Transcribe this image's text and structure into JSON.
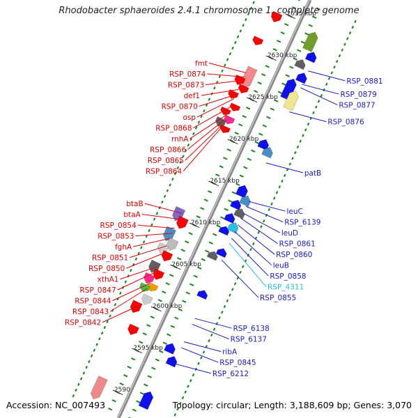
{
  "title": "Rhodobacter sphaeroides 2.4.1 chromosome 1, complete genome",
  "footer": {
    "accession": "Accession: NC_007493",
    "summary": "Topology: circular; Length: 3,188,609 bp; Genes: 3,070"
  },
  "colors": {
    "left_label": "#e00000",
    "right_label": "#1a1acc",
    "highlight_label": "#1fc1e0",
    "backbone": "#8a8a8a",
    "tick": "#1a8a1a"
  },
  "scale_ticks": [
    {
      "label": "2635 kbp",
      "kbp": 2635
    },
    {
      "label": "2630 kbp",
      "kbp": 2630
    },
    {
      "label": "2625 kbp",
      "kbp": 2625
    },
    {
      "label": "2620 kbp",
      "kbp": 2620
    },
    {
      "label": "2615 kbp",
      "kbp": 2615
    },
    {
      "label": "2610 kbp",
      "kbp": 2610
    },
    {
      "label": "2605 kbp",
      "kbp": 2605
    },
    {
      "label": "2600 kbp",
      "kbp": 2600
    },
    {
      "label": "2595 kbp",
      "kbp": 2595
    },
    {
      "label": "2590",
      "kbp": 2590
    }
  ],
  "left_labels": [
    {
      "name": "fmt",
      "kbp": 2627.4
    },
    {
      "name": "RSP_0874",
      "kbp": 2626.9
    },
    {
      "name": "RSP_0873",
      "kbp": 2626.5
    },
    {
      "name": "def1",
      "kbp": 2625.4
    },
    {
      "name": "RSP_0870",
      "kbp": 2624.8
    },
    {
      "name": "osp",
      "kbp": 2624.3
    },
    {
      "name": "RSP_0868",
      "kbp": 2623.3
    },
    {
      "name": "rnhA",
      "kbp": 2622.4
    },
    {
      "name": "RSP_0866",
      "kbp": 2621.8
    },
    {
      "name": "RSP_0865",
      "kbp": 2621.2
    },
    {
      "name": "RSP_0864",
      "kbp": 2620.7
    },
    {
      "name": "btaB",
      "kbp": 2610.6
    },
    {
      "name": "btaA",
      "kbp": 2609.9
    },
    {
      "name": "RSP_0854",
      "kbp": 2608.8
    },
    {
      "name": "RSP_0853",
      "kbp": 2608.2
    },
    {
      "name": "fghA",
      "kbp": 2607.6
    },
    {
      "name": "RSP_0851",
      "kbp": 2606.7
    },
    {
      "name": "RSP_0850",
      "kbp": 2605.8
    },
    {
      "name": "xthA1",
      "kbp": 2604.2
    },
    {
      "name": "RSP_0847",
      "kbp": 2603.5
    },
    {
      "name": "RSP_0844",
      "kbp": 2602.2
    },
    {
      "name": "RSP_0843",
      "kbp": 2601.6
    },
    {
      "name": "RSP_0842",
      "kbp": 2599.6
    }
  ],
  "right_labels": [
    {
      "name": "RSP_0881",
      "kbp": 2630.4,
      "highlight": false
    },
    {
      "name": "RSP_0879",
      "kbp": 2628.8,
      "highlight": false
    },
    {
      "name": "RSP_0877",
      "kbp": 2628.4,
      "highlight": false
    },
    {
      "name": "RSP_0876",
      "kbp": 2625.5,
      "highlight": false
    },
    {
      "name": "patB",
      "kbp": 2619.4,
      "highlight": false
    },
    {
      "name": "leuC",
      "kbp": 2614.8,
      "highlight": false
    },
    {
      "name": "RSP_6139",
      "kbp": 2614.2,
      "highlight": false
    },
    {
      "name": "leuD",
      "kbp": 2613.4,
      "highlight": false
    },
    {
      "name": "RSP_0861",
      "kbp": 2612.8,
      "highlight": false
    },
    {
      "name": "RSP_0860",
      "kbp": 2612.0,
      "highlight": false
    },
    {
      "name": "leuB",
      "kbp": 2611.2,
      "highlight": false
    },
    {
      "name": "RSP_0858",
      "kbp": 2610.4,
      "highlight": false
    },
    {
      "name": "RSP_4311",
      "kbp": 2609.8,
      "highlight": true
    },
    {
      "name": "RSP_0855",
      "kbp": 2607.8,
      "highlight": false
    },
    {
      "name": "RSP_6138",
      "kbp": 2600.8,
      "highlight": false
    },
    {
      "name": "RSP_6137",
      "kbp": 2600.1,
      "highlight": false
    },
    {
      "name": "ribA",
      "kbp": 2598.0,
      "highlight": false
    },
    {
      "name": "RSP_0845",
      "kbp": 2597.3,
      "highlight": false
    },
    {
      "name": "RSP_6212",
      "kbp": 2595.4,
      "highlight": false
    }
  ]
}
